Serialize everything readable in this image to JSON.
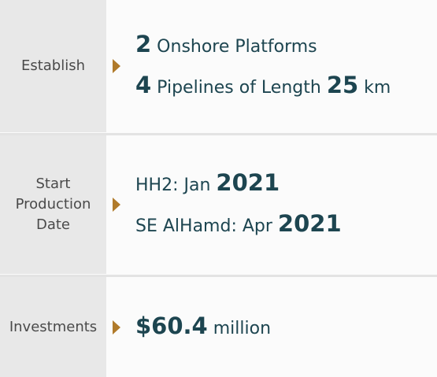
{
  "rows": [
    {
      "label": "Establish",
      "lines": [
        [
          {
            "text": "2",
            "strong": true
          },
          {
            "text": " Onshore Platforms",
            "strong": false
          }
        ],
        [
          {
            "text": "4",
            "strong": true
          },
          {
            "text": " Pipelines of Length ",
            "strong": false
          },
          {
            "text": "25",
            "strong": true
          },
          {
            "text": " km",
            "strong": false
          }
        ]
      ]
    },
    {
      "label": "Start Production Date",
      "lines": [
        [
          {
            "text": "HH2: Jan ",
            "strong": false
          },
          {
            "text": "2021",
            "strong": true
          }
        ],
        [
          {
            "text": "SE AlHamd: Apr ",
            "strong": false
          },
          {
            "text": "2021",
            "strong": true
          }
        ]
      ]
    },
    {
      "label": "Investments",
      "lines": [
        [
          {
            "text": "$60.4",
            "strong": true
          },
          {
            "text": " million",
            "strong": false
          }
        ]
      ]
    }
  ]
}
